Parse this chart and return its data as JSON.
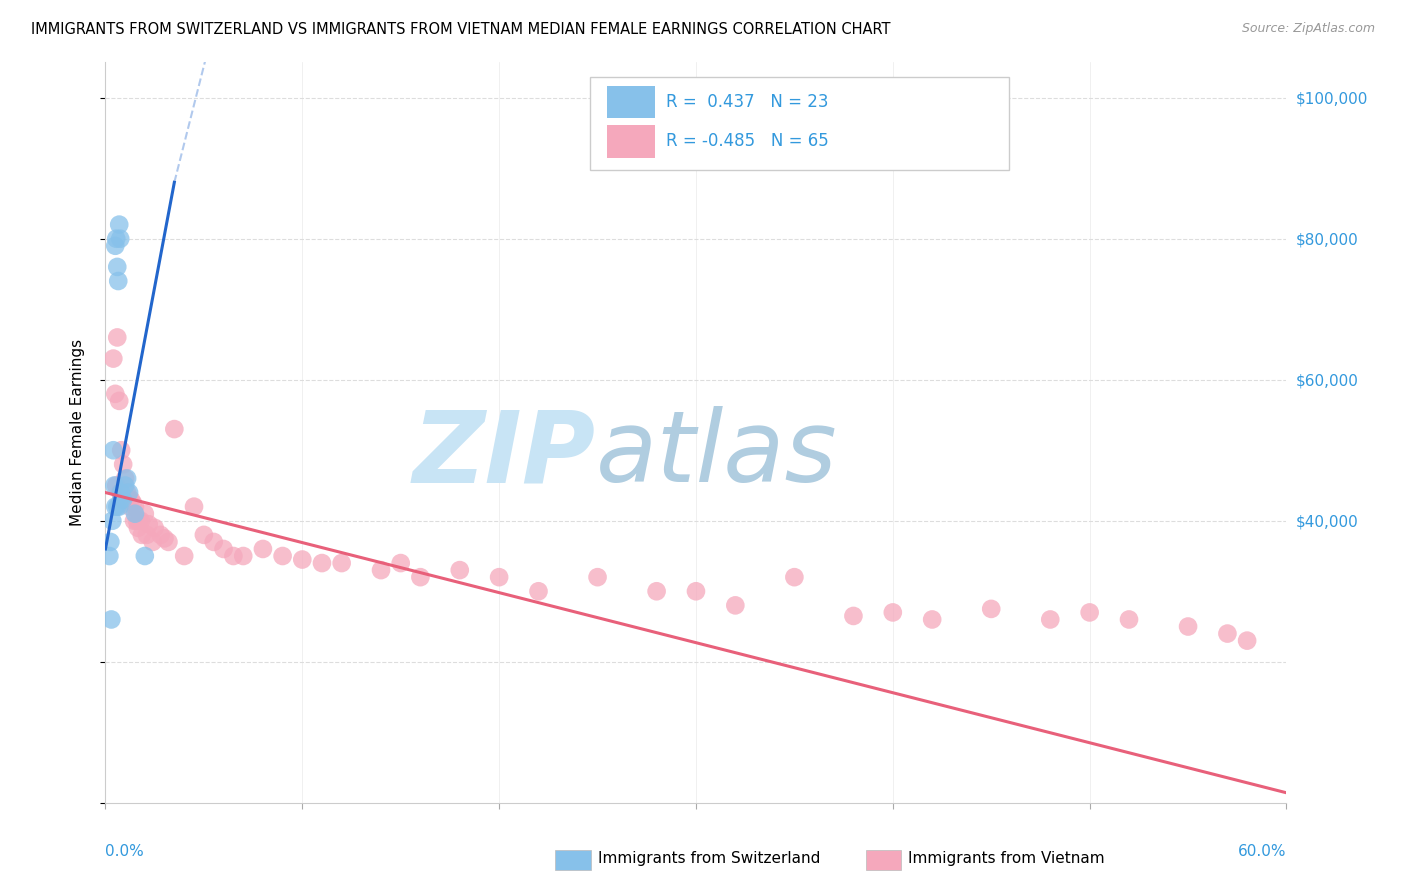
{
  "title": "IMMIGRANTS FROM SWITZERLAND VS IMMIGRANTS FROM VIETNAM MEDIAN FEMALE EARNINGS CORRELATION CHART",
  "source": "Source: ZipAtlas.com",
  "ylabel": "Median Female Earnings",
  "r_swiss": 0.437,
  "n_swiss": 23,
  "r_viet": -0.485,
  "n_viet": 65,
  "color_swiss": "#87C1EA",
  "color_viet": "#F5A8BC",
  "color_swiss_line": "#2266CC",
  "color_viet_line": "#E8607A",
  "axis_color": "#3399DD",
  "grid_color": "#DDDDDD",
  "xmin": 0.0,
  "xmax": 60.0,
  "ymin": 0,
  "ymax": 105000,
  "swiss_x": [
    0.5,
    0.6,
    0.7,
    0.55,
    0.65,
    0.75,
    0.3,
    0.35,
    0.4,
    0.45,
    0.8,
    0.9,
    1.0,
    1.1,
    1.2,
    0.5,
    0.6,
    0.7,
    0.8,
    0.2,
    0.25,
    1.5,
    2.0
  ],
  "swiss_y": [
    79000,
    76000,
    82000,
    80000,
    74000,
    80000,
    26000,
    40000,
    50000,
    45000,
    44000,
    43000,
    45000,
    46000,
    44000,
    42000,
    42000,
    42000,
    43000,
    35000,
    37000,
    41000,
    35000
  ],
  "viet_x": [
    0.4,
    0.5,
    0.6,
    0.7,
    0.8,
    0.9,
    1.0,
    1.1,
    1.2,
    1.3,
    1.4,
    1.5,
    1.6,
    1.7,
    1.8,
    2.0,
    2.2,
    2.5,
    2.8,
    3.0,
    3.5,
    4.0,
    4.5,
    5.0,
    5.5,
    6.0,
    7.0,
    8.0,
    9.0,
    10.0,
    11.0,
    12.0,
    14.0,
    15.0,
    16.0,
    18.0,
    20.0,
    22.0,
    25.0,
    28.0,
    30.0,
    32.0,
    35.0,
    38.0,
    40.0,
    42.0,
    45.0,
    48.0,
    50.0,
    52.0,
    55.0,
    57.0,
    58.0,
    0.55,
    0.75,
    0.85,
    1.05,
    1.25,
    1.45,
    1.65,
    1.85,
    2.1,
    2.4,
    3.2,
    6.5
  ],
  "viet_y": [
    63000,
    58000,
    66000,
    57000,
    50000,
    48000,
    46000,
    44000,
    43000,
    43000,
    42500,
    42000,
    40000,
    40000,
    40000,
    41000,
    39500,
    39000,
    38000,
    37500,
    53000,
    35000,
    42000,
    38000,
    37000,
    36000,
    35000,
    36000,
    35000,
    34500,
    34000,
    34000,
    33000,
    34000,
    32000,
    33000,
    32000,
    30000,
    32000,
    30000,
    30000,
    28000,
    32000,
    26500,
    27000,
    26000,
    27500,
    26000,
    27000,
    26000,
    25000,
    24000,
    23000,
    45000,
    44000,
    43000,
    43000,
    42000,
    40000,
    39000,
    38000,
    38000,
    37000,
    37000,
    35000
  ],
  "ytick_right": [
    40000,
    60000,
    80000,
    100000
  ],
  "ytick_right_labels": [
    "$40,000",
    "$60,000",
    "$80,000",
    "$100,000"
  ]
}
